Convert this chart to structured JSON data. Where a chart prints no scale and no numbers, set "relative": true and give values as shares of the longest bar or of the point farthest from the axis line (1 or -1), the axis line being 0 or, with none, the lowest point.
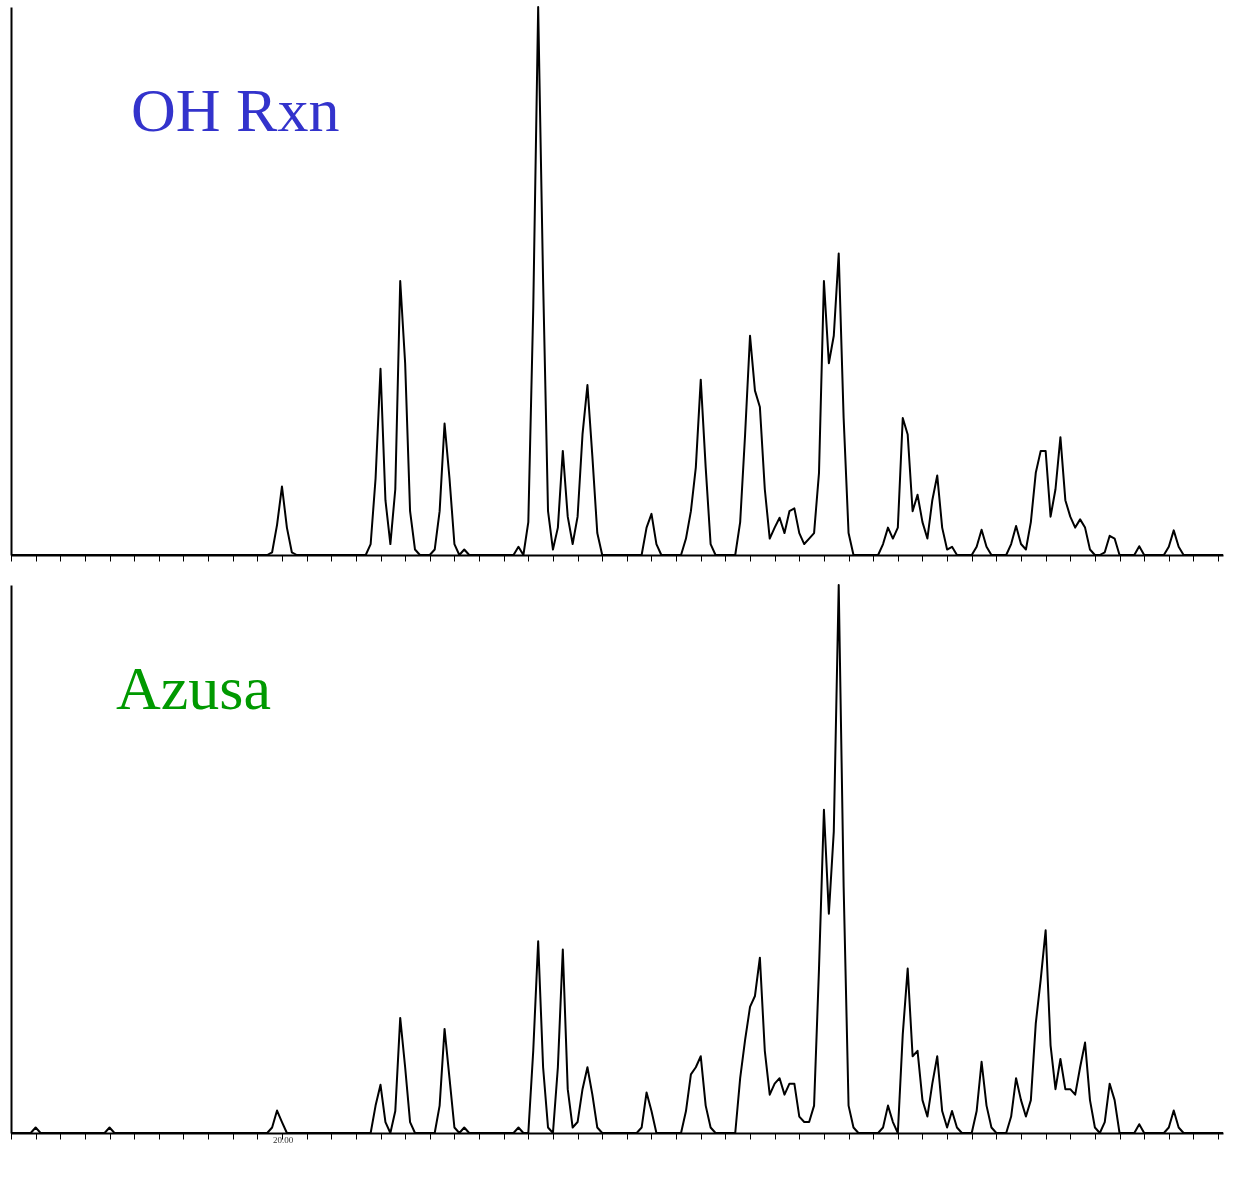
{
  "chart_data": [
    {
      "type": "line",
      "title": "OH Rxn",
      "relative": true,
      "tick_labels": false,
      "grid": false,
      "categories": [
        null,
        null,
        null,
        null,
        null,
        null,
        null,
        null,
        null,
        null,
        null,
        null,
        null,
        null,
        null,
        null,
        null,
        null,
        null,
        null,
        null,
        null,
        null,
        null,
        null,
        null,
        null,
        null,
        null,
        null,
        null,
        null,
        null,
        null,
        null,
        null,
        null,
        null,
        null,
        null,
        null,
        null,
        null,
        null,
        null,
        null,
        null,
        null,
        null,
        null,
        null,
        null,
        null,
        null,
        null,
        null,
        null,
        null,
        null,
        null,
        null,
        null,
        null,
        null,
        null,
        null,
        null,
        null,
        null,
        null,
        null,
        null,
        null,
        null,
        null,
        null,
        null,
        null,
        null,
        null,
        null,
        null,
        null,
        null,
        null,
        null,
        null,
        null,
        null,
        null,
        null,
        null,
        null,
        null,
        null,
        null,
        null,
        null,
        null,
        null,
        null,
        null,
        null,
        null,
        null,
        null,
        null,
        null,
        null,
        null,
        null,
        null,
        null,
        null,
        null,
        null,
        null,
        null,
        null,
        null,
        null,
        null,
        null,
        null,
        null,
        null,
        null,
        null,
        null,
        null,
        null,
        null,
        null,
        null,
        null,
        null,
        null,
        null,
        null,
        null,
        null,
        null,
        null,
        null,
        null,
        null,
        null,
        null,
        null,
        null,
        null,
        null,
        null,
        null,
        null,
        null,
        null,
        null,
        null,
        null,
        null,
        null,
        null,
        null,
        null,
        null,
        null,
        null,
        null,
        null,
        null,
        null,
        null,
        null,
        null,
        null,
        null,
        null,
        null,
        null,
        null,
        null,
        null,
        null,
        null,
        null,
        null,
        null,
        null,
        null,
        null,
        null,
        null,
        null,
        null,
        null,
        null,
        null,
        null,
        null,
        null,
        null,
        null,
        null,
        null,
        null,
        null,
        null,
        null,
        null,
        null,
        null,
        null,
        null,
        null,
        null,
        null,
        null,
        null,
        null,
        null,
        null,
        null,
        null,
        null,
        null,
        null,
        null,
        null,
        null,
        null,
        null,
        null,
        null,
        null,
        null,
        null,
        null,
        null,
        null,
        null,
        null,
        null,
        null,
        null,
        null,
        null
      ],
      "series": [
        {
          "color": "#000000",
          "values": [
            0,
            0,
            0,
            0,
            0,
            0,
            0,
            0,
            0,
            0,
            0,
            0,
            0,
            0,
            0,
            0,
            0,
            0,
            0,
            0,
            0,
            0,
            0,
            0,
            0,
            0,
            0,
            0,
            0,
            0,
            0,
            0,
            0,
            0,
            0,
            0,
            0,
            0,
            0,
            0,
            0,
            0,
            0,
            0,
            0,
            0,
            0,
            0,
            0,
            0,
            0,
            0,
            0,
            0.005,
            0.055,
            0.125,
            0.05,
            0.005,
            0,
            0,
            0,
            0,
            0,
            0,
            0,
            0,
            0,
            0,
            0,
            0,
            0,
            0,
            0,
            0.02,
            0.14,
            0.34,
            0.1,
            0.02,
            0.12,
            0.5,
            0.35,
            0.08,
            0.01,
            0,
            0,
            0,
            0.01,
            0.08,
            0.24,
            0.14,
            0.02,
            0,
            0.01,
            0,
            0,
            0,
            0,
            0,
            0,
            0,
            0,
            0,
            0,
            0.015,
            0,
            0.06,
            0.45,
            1.0,
            0.5,
            0.08,
            0.01,
            0.05,
            0.19,
            0.07,
            0.02,
            0.07,
            0.22,
            0.31,
            0.18,
            0.04,
            0,
            0,
            0,
            0,
            0,
            0,
            0,
            0,
            0,
            0.05,
            0.075,
            0.02,
            0,
            0,
            0,
            0,
            0,
            0.03,
            0.08,
            0.16,
            0.32,
            0.16,
            0.02,
            0,
            0,
            0,
            0,
            0,
            0.06,
            0.22,
            0.4,
            0.3,
            0.27,
            0.12,
            0.03,
            0.05,
            0.068,
            0.04,
            0.08,
            0.085,
            0.04,
            0.02,
            0.03,
            0.04,
            0.15,
            0.5,
            0.35,
            0.4,
            0.55,
            0.25,
            0.04,
            0,
            0,
            0,
            0,
            0,
            0,
            0.02,
            0.05,
            0.03,
            0.05,
            0.25,
            0.22,
            0.08,
            0.11,
            0.06,
            0.03,
            0.1,
            0.145,
            0.05,
            0.01,
            0.015,
            0,
            0,
            0,
            0,
            0.015,
            0.046,
            0.015,
            0,
            0,
            0,
            0,
            0.02,
            0.053,
            0.02,
            0.01,
            0.06,
            0.15,
            0.19,
            0.19,
            0.07,
            0.12,
            0.215,
            0.1,
            0.07,
            0.05,
            0.065,
            0.05,
            0.01,
            0,
            0,
            0.005,
            0.035,
            0.03,
            0,
            0,
            0,
            0,
            0.016,
            0,
            0,
            0,
            0,
            0,
            0.015,
            0.045,
            0.015,
            0,
            0,
            0,
            0,
            0,
            0,
            0,
            0,
            0
          ]
        }
      ]
    },
    {
      "type": "line",
      "title": "Azusa",
      "relative": true,
      "tick_labels": false,
      "grid": false,
      "annotations": [
        "20.00"
      ],
      "categories": [
        null,
        null,
        null,
        null,
        null,
        null,
        null,
        null,
        null,
        null,
        null,
        null,
        null,
        null,
        null,
        null,
        null,
        null,
        null,
        null,
        null,
        null,
        null,
        null,
        null,
        null,
        null,
        null,
        null,
        null,
        null,
        null,
        null,
        null,
        null,
        null,
        null,
        null,
        null,
        null,
        null,
        null,
        null,
        null,
        null,
        null,
        null,
        null,
        null,
        null,
        null,
        null,
        null,
        null,
        null,
        null,
        null,
        null,
        null,
        null,
        null,
        null,
        null,
        null,
        null,
        null,
        null,
        null,
        null,
        null,
        null,
        null,
        null,
        null,
        null,
        null,
        null,
        null,
        null,
        null,
        null,
        null,
        null,
        null,
        null,
        null,
        null,
        null,
        null,
        null,
        null,
        null,
        null,
        null,
        null,
        null,
        null,
        null,
        null,
        null,
        null,
        null,
        null,
        null,
        null,
        null,
        null,
        null,
        null,
        null,
        null,
        null,
        null,
        null,
        null,
        null,
        null,
        null,
        null,
        null,
        null,
        null,
        null,
        null,
        null,
        null,
        null,
        null,
        null,
        null,
        null,
        null,
        null,
        null,
        null,
        null,
        null,
        null,
        null,
        null,
        null,
        null,
        null,
        null,
        null,
        null,
        null,
        null,
        null,
        null,
        null,
        null,
        null,
        null,
        null,
        null,
        null,
        null,
        null,
        null,
        null,
        null,
        null,
        null,
        null,
        null,
        null,
        null,
        null,
        null,
        null,
        null,
        null,
        null,
        null,
        null,
        null,
        null,
        null,
        null,
        null,
        null,
        null,
        null,
        null,
        null,
        null,
        null,
        null,
        null,
        null,
        null,
        null,
        null,
        null,
        null,
        null,
        null,
        null,
        null,
        null,
        null,
        null,
        null,
        null,
        null,
        null,
        null,
        null,
        null,
        null,
        null,
        null,
        null,
        null,
        null,
        null,
        null,
        null,
        null,
        null,
        null,
        null,
        null,
        null,
        null,
        null,
        null,
        null,
        null,
        null,
        null,
        null,
        null,
        null,
        null,
        null,
        null,
        null,
        null,
        null,
        null,
        null,
        null,
        null,
        null,
        null
      ],
      "series": [
        {
          "color": "#000000",
          "values": [
            0,
            0,
            0,
            0,
            0,
            0.01,
            0,
            0,
            0,
            0,
            0,
            0,
            0,
            0,
            0,
            0,
            0,
            0,
            0,
            0,
            0.01,
            0,
            0,
            0,
            0,
            0,
            0,
            0,
            0,
            0,
            0,
            0,
            0,
            0,
            0,
            0,
            0,
            0,
            0,
            0,
            0,
            0,
            0,
            0,
            0,
            0,
            0,
            0,
            0,
            0,
            0,
            0,
            0,
            0.01,
            0.041,
            0.02,
            0,
            0,
            0,
            0,
            0,
            0,
            0,
            0,
            0,
            0,
            0,
            0,
            0,
            0,
            0,
            0,
            0,
            0,
            0.05,
            0.088,
            0.02,
            0,
            0.04,
            0.21,
            0.12,
            0.02,
            0,
            0,
            0,
            0,
            0,
            0.05,
            0.19,
            0.1,
            0.01,
            0,
            0.01,
            0,
            0,
            0,
            0,
            0,
            0,
            0,
            0,
            0,
            0,
            0.01,
            0,
            0,
            0.15,
            0.35,
            0.12,
            0.01,
            0,
            0.12,
            0.335,
            0.08,
            0.01,
            0.02,
            0.08,
            0.12,
            0.07,
            0.01,
            0,
            0,
            0,
            0,
            0,
            0,
            0,
            0,
            0.01,
            0.074,
            0.04,
            0,
            0,
            0,
            0,
            0,
            0,
            0.04,
            0.107,
            0.12,
            0.14,
            0.05,
            0.01,
            0,
            0,
            0,
            0,
            0,
            0.1,
            0.17,
            0.23,
            0.25,
            0.32,
            0.15,
            0.07,
            0.09,
            0.1,
            0.07,
            0.09,
            0.09,
            0.03,
            0.02,
            0.02,
            0.05,
            0.3,
            0.59,
            0.4,
            0.55,
            1.0,
            0.45,
            0.05,
            0.01,
            0,
            0,
            0,
            0,
            0,
            0.01,
            0.05,
            0.02,
            0,
            0.18,
            0.3,
            0.14,
            0.15,
            0.06,
            0.03,
            0.09,
            0.14,
            0.04,
            0.01,
            0.04,
            0.01,
            0,
            0,
            0,
            0.04,
            0.13,
            0.05,
            0.01,
            0,
            0,
            0,
            0.03,
            0.1,
            0.06,
            0.03,
            0.06,
            0.2,
            0.28,
            0.37,
            0.16,
            0.08,
            0.135,
            0.08,
            0.08,
            0.07,
            0.12,
            0.165,
            0.06,
            0.01,
            0,
            0.02,
            0.09,
            0.06,
            0,
            0,
            0,
            0,
            0.016,
            0,
            0,
            0,
            0,
            0,
            0.01,
            0.041,
            0.01,
            0,
            0,
            0,
            0,
            0,
            0,
            0,
            0,
            0
          ]
        }
      ]
    }
  ]
}
